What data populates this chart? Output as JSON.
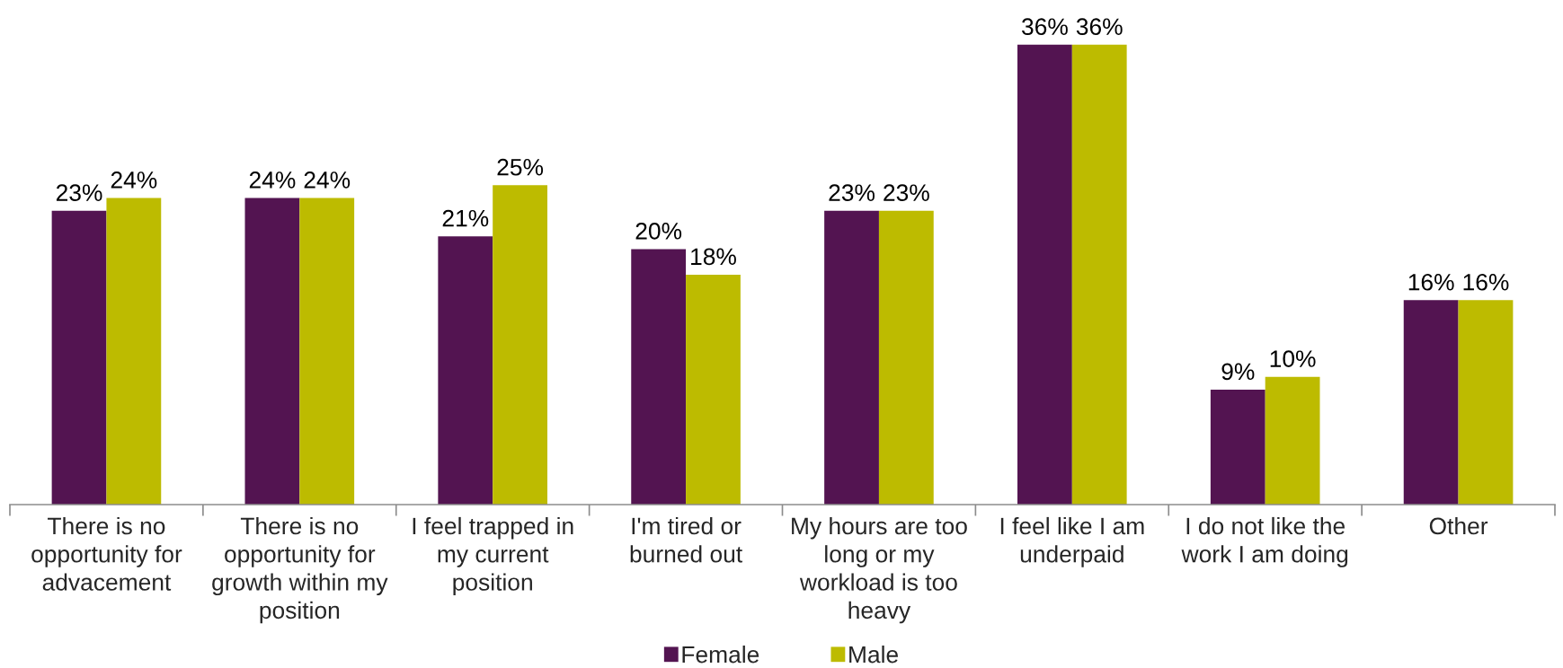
{
  "chart_data": {
    "type": "bar",
    "categories": [
      "There is no\nopportunity for\nadvacement",
      "There is no\nopportunity for\ngrowth within my\nposition",
      "I feel trapped in\nmy current\nposition",
      "I'm tired or\nburned out",
      "My hours are too\nlong or my\nworkload is too\nheavy",
      "I feel like I am\nunderpaid",
      "I do not like the\nwork I am doing",
      "Other"
    ],
    "series": [
      {
        "name": "Female",
        "color": "#531451",
        "values": [
          23,
          24,
          21,
          20,
          23,
          36,
          9,
          16
        ],
        "value_labels": [
          "23%",
          "24%",
          "21%",
          "20%",
          "23%",
          "36%",
          "9%",
          "16%"
        ]
      },
      {
        "name": "Male",
        "color": "#bdbb00",
        "values": [
          24,
          24,
          25,
          18,
          23,
          36,
          10,
          16
        ],
        "value_labels": [
          "24%",
          "24%",
          "25%",
          "18%",
          "23%",
          "36%",
          "10%",
          "16%"
        ]
      }
    ],
    "tick_labels": "x",
    "legend": "bottom",
    "grid": false
  }
}
